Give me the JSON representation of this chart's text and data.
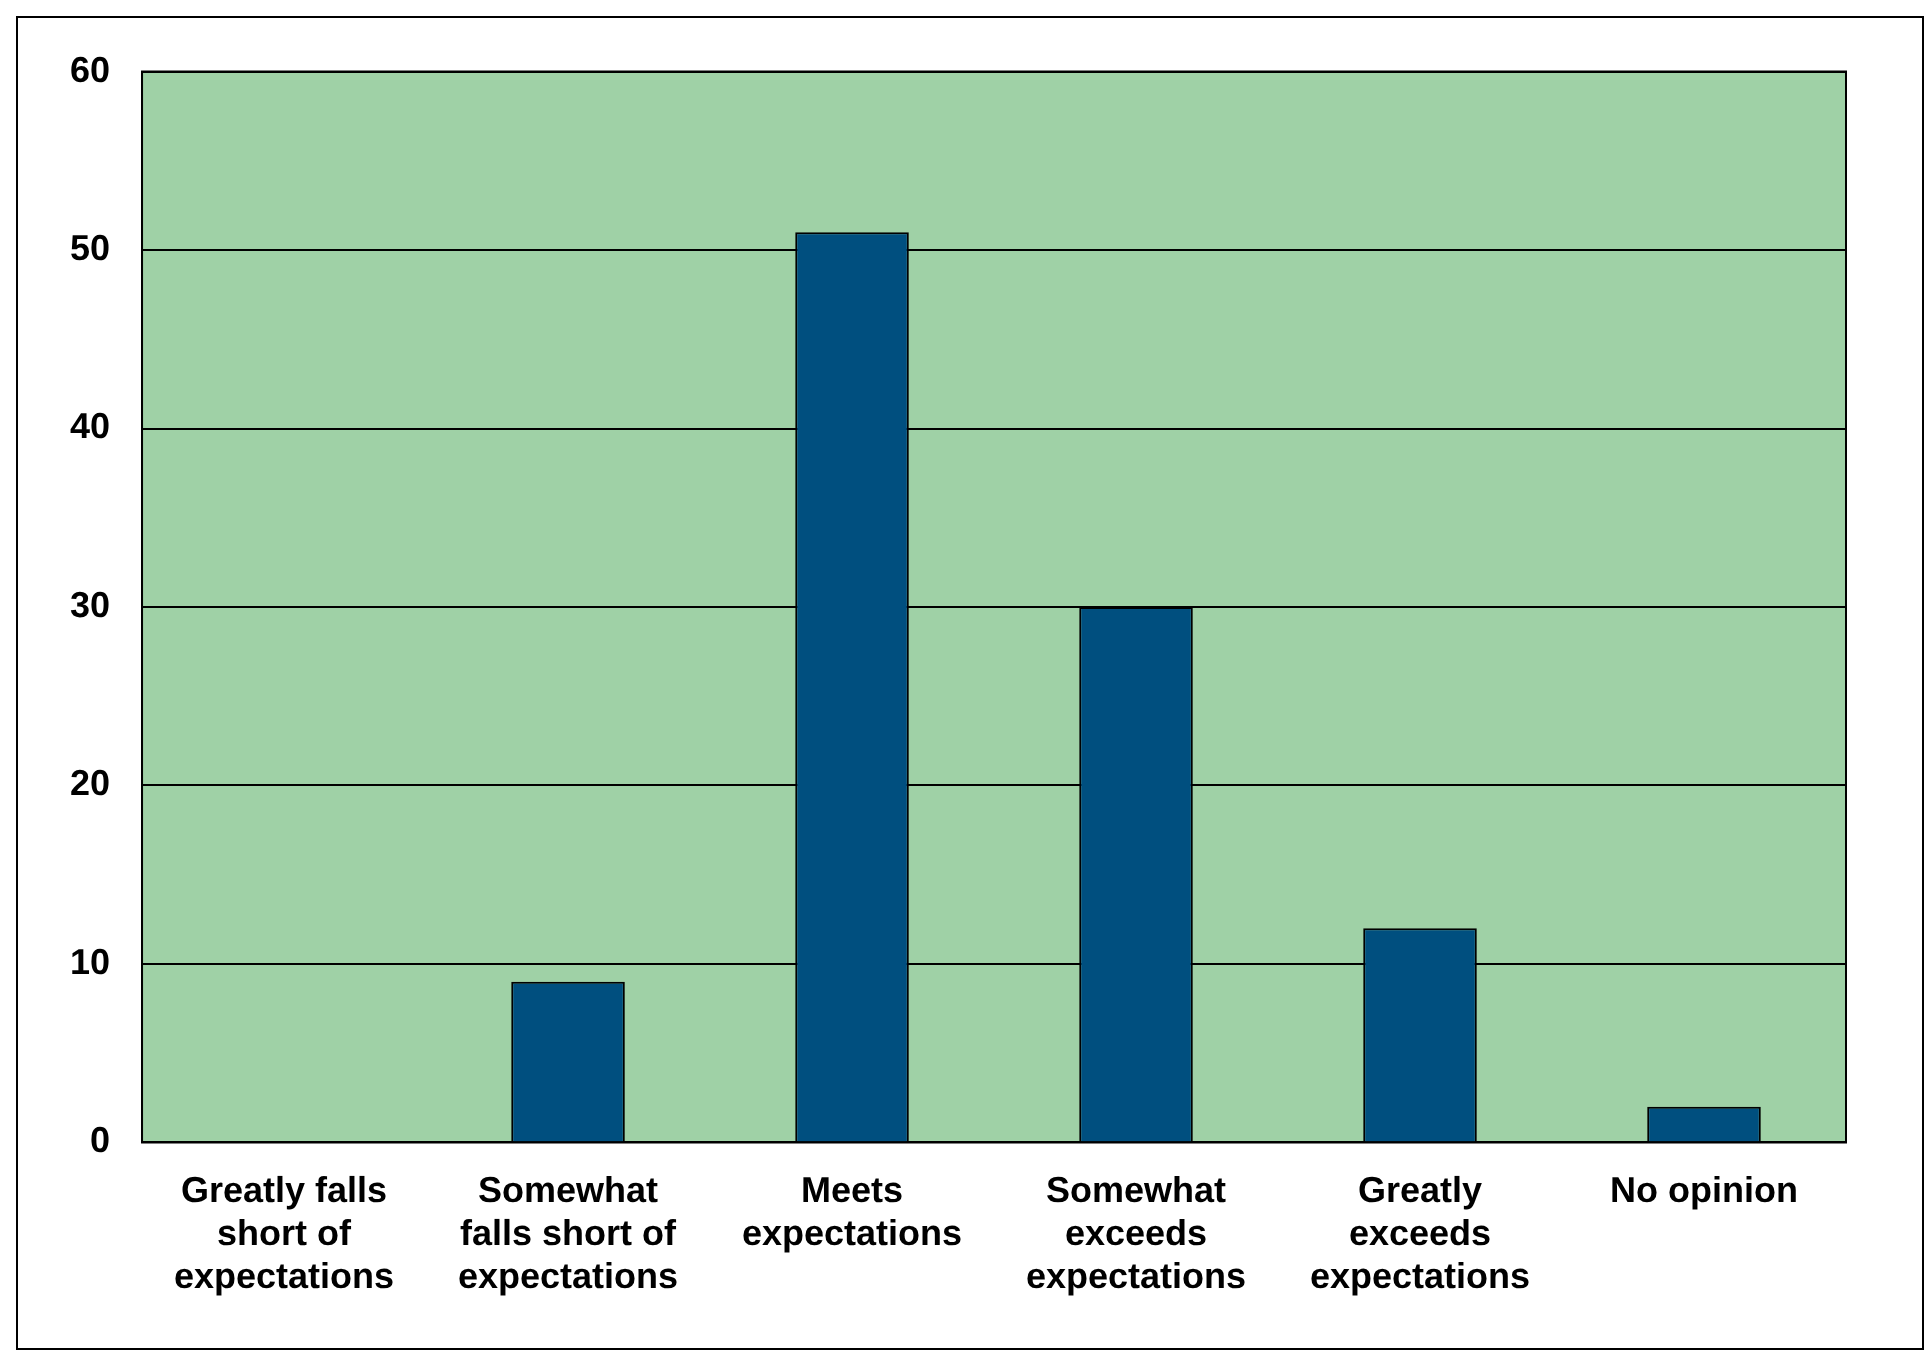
{
  "chart_data": {
    "type": "bar",
    "categories": [
      "Greatly falls short of expectations",
      "Somewhat falls short of expectations",
      "Meets expectations",
      "Somewhat exceeds expectations",
      "Greatly exceeds expectations",
      "No opinion"
    ],
    "values": [
      0,
      9,
      51,
      30,
      12,
      2
    ],
    "color": "#004f7f",
    "ylim": [
      0,
      60
    ],
    "yticks": [
      0,
      10,
      20,
      30,
      40,
      50,
      60
    ],
    "grid": "y",
    "legend": false
  }
}
